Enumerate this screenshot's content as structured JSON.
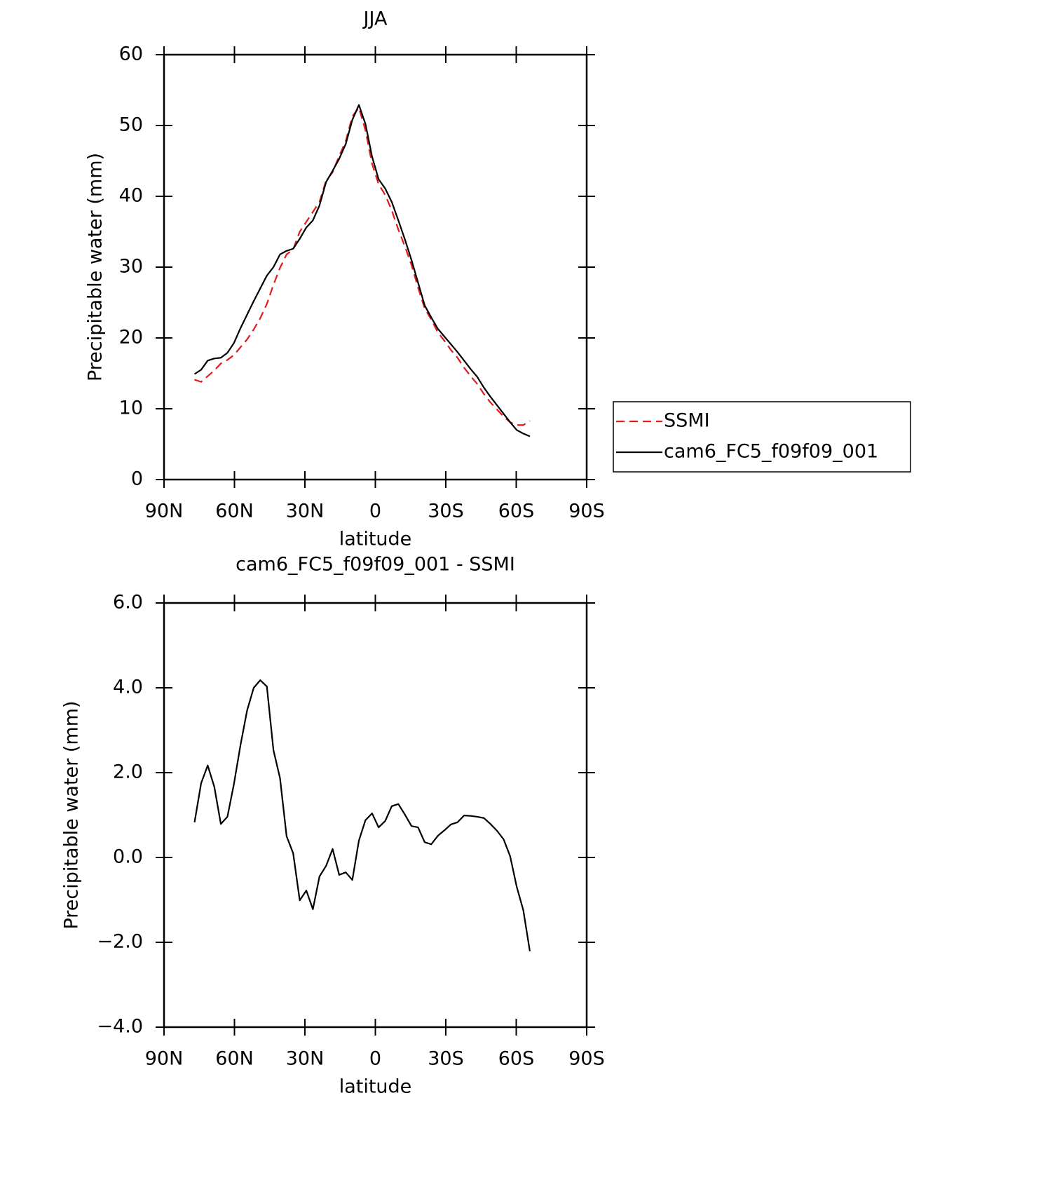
{
  "chart_data": [
    {
      "type": "line",
      "title": "JJA",
      "xlabel": "latitude",
      "ylabel": "Precipitable water (mm)",
      "x": [
        77.0,
        74.2,
        71.4,
        68.6,
        65.8,
        63.0,
        60.2,
        57.4,
        54.6,
        51.8,
        49.0,
        46.2,
        43.4,
        40.6,
        37.8,
        35.0,
        32.2,
        29.4,
        26.6,
        23.8,
        21.0,
        18.2,
        15.4,
        12.6,
        9.8,
        7.0,
        4.2,
        1.4,
        -1.4,
        -4.2,
        -7.0,
        -9.8,
        -12.6,
        -15.4,
        -18.2,
        -21.0,
        -23.8,
        -26.6,
        -29.4,
        -32.2,
        -35.0,
        -37.8,
        -40.6,
        -43.4,
        -46.2,
        -49.0,
        -51.8,
        -54.6,
        -57.4,
        -60.2,
        -63.0,
        -65.8
      ],
      "series": [
        {
          "name": "SSMI",
          "color": "#e41a1c",
          "dash": true,
          "values": [
            14.1,
            13.8,
            14.6,
            15.4,
            16.4,
            16.9,
            17.6,
            18.7,
            19.8,
            21.2,
            22.8,
            24.8,
            27.5,
            29.9,
            31.8,
            32.5,
            35.0,
            36.4,
            37.8,
            39.2,
            42.2,
            43.4,
            45.7,
            47.8,
            51.3,
            52.5,
            49.3,
            44.6,
            41.7,
            40.2,
            38.0,
            35.3,
            32.9,
            30.3,
            27.1,
            24.2,
            22.6,
            20.8,
            19.6,
            18.3,
            17.2,
            15.8,
            14.6,
            13.5,
            12.1,
            10.9,
            9.9,
            8.9,
            8.1,
            7.7,
            7.7,
            8.3
          ]
        },
        {
          "name": "cam6_FC5_f09f09_001",
          "color": "#000000",
          "dash": false,
          "values": [
            14.9,
            15.5,
            16.8,
            17.1,
            17.2,
            17.9,
            19.3,
            21.4,
            23.3,
            25.2,
            27.0,
            28.8,
            30.0,
            31.8,
            32.3,
            32.6,
            34.0,
            35.6,
            36.6,
            38.7,
            42.0,
            43.6,
            45.3,
            47.4,
            50.8,
            52.9,
            50.2,
            45.6,
            42.4,
            41.1,
            39.2,
            36.6,
            33.9,
            31.0,
            27.8,
            24.6,
            22.9,
            21.3,
            20.2,
            19.1,
            18.0,
            16.8,
            15.6,
            14.5,
            13.0,
            11.7,
            10.5,
            9.3,
            8.1,
            7.0,
            6.5,
            6.1
          ]
        }
      ],
      "xlim": [
        90,
        -90
      ],
      "xticks": [
        {
          "value": 90,
          "label": "90N"
        },
        {
          "value": 60,
          "label": "60N"
        },
        {
          "value": 30,
          "label": "30N"
        },
        0,
        {
          "value": -30,
          "label": "30S"
        },
        {
          "value": -60,
          "label": "60S"
        },
        {
          "value": -90,
          "label": "90S"
        }
      ],
      "ylim": [
        0,
        60
      ],
      "yticks": [
        0,
        10,
        20,
        30,
        40,
        50,
        60
      ],
      "legend": "right"
    },
    {
      "type": "line",
      "title": "cam6_FC5_f09f09_001 - SSMI",
      "xlabel": "latitude",
      "ylabel": "Precipitable water (mm)",
      "x": [
        77.0,
        74.2,
        71.4,
        68.6,
        65.8,
        63.0,
        60.2,
        57.4,
        54.6,
        51.8,
        49.0,
        46.2,
        43.4,
        40.6,
        37.8,
        35.0,
        32.2,
        29.4,
        26.6,
        23.8,
        21.0,
        18.2,
        15.4,
        12.6,
        9.8,
        7.0,
        4.2,
        1.4,
        -1.4,
        -4.2,
        -7.0,
        -9.8,
        -12.6,
        -15.4,
        -18.2,
        -21.0,
        -23.8,
        -26.6,
        -29.4,
        -32.2,
        -35.0,
        -37.8,
        -40.6,
        -43.4,
        -46.2,
        -49.0,
        -51.8,
        -54.6,
        -57.4,
        -60.2,
        -63.0,
        -65.8
      ],
      "series": [
        {
          "color": "#000000",
          "dash": false,
          "values": [
            0.83,
            1.75,
            2.17,
            1.67,
            0.79,
            0.96,
            1.74,
            2.66,
            3.47,
            4.0,
            4.18,
            4.03,
            2.53,
            1.87,
            0.5,
            0.1,
            -1.01,
            -0.78,
            -1.22,
            -0.45,
            -0.2,
            0.2,
            -0.41,
            -0.35,
            -0.53,
            0.4,
            0.88,
            1.04,
            0.71,
            0.86,
            1.21,
            1.26,
            1.01,
            0.74,
            0.71,
            0.36,
            0.31,
            0.51,
            0.64,
            0.78,
            0.83,
            0.99,
            0.98,
            0.96,
            0.93,
            0.79,
            0.63,
            0.43,
            0.03,
            -0.69,
            -1.24,
            -2.21
          ]
        }
      ],
      "xlim": [
        90,
        -90
      ],
      "xticks": [
        {
          "value": 90,
          "label": "90N"
        },
        {
          "value": 60,
          "label": "60N"
        },
        {
          "value": 30,
          "label": "30N"
        },
        0,
        {
          "value": -30,
          "label": "30S"
        },
        {
          "value": -60,
          "label": "60S"
        },
        {
          "value": -90,
          "label": "90S"
        }
      ],
      "ylim": [
        -4,
        6
      ],
      "yticks": [
        {
          "value": -4,
          "label": "−4.0"
        },
        {
          "value": -2,
          "label": "−2.0"
        },
        {
          "value": 0,
          "label": "0.0"
        },
        {
          "value": 2,
          "label": "2.0"
        },
        {
          "value": 4,
          "label": "4.0"
        },
        {
          "value": 6,
          "label": "6.0"
        }
      ]
    }
  ]
}
